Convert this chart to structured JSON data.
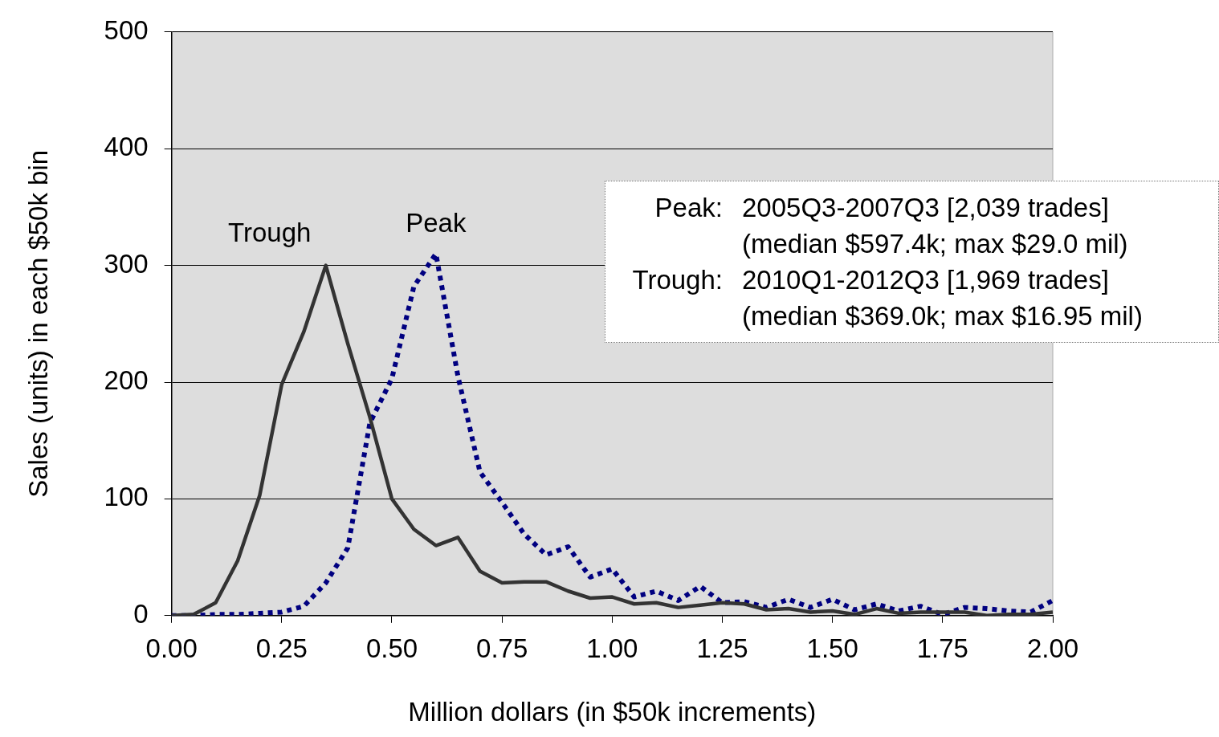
{
  "chart_data": {
    "type": "line",
    "xlabel": "Million dollars (in $50k increments)",
    "ylabel": "Sales (units) in each $50k bin",
    "x": [
      0,
      0.05,
      0.1,
      0.15,
      0.2,
      0.25,
      0.3,
      0.35,
      0.4,
      0.45,
      0.5,
      0.55,
      0.6,
      0.65,
      0.7,
      0.75,
      0.8,
      0.85,
      0.9,
      0.95,
      1,
      1.05,
      1.1,
      1.15,
      1.2,
      1.25,
      1.3,
      1.35,
      1.4,
      1.45,
      1.5,
      1.55,
      1.6,
      1.65,
      1.7,
      1.75,
      1.8,
      1.85,
      1.9,
      1.95,
      2
    ],
    "series": [
      {
        "name": "Trough",
        "color": "#333333",
        "line_style": "solid",
        "values": [
          0,
          1,
          11,
          47,
          103,
          198,
          243,
          300,
          233,
          170,
          100,
          74,
          60,
          67,
          38,
          28,
          29,
          29,
          21,
          15,
          16,
          10,
          11,
          7,
          9,
          11,
          10,
          5,
          6,
          3,
          4,
          1,
          6,
          2,
          3,
          3,
          3,
          0,
          1,
          1,
          3
        ]
      },
      {
        "name": "Peak",
        "color": "#000080",
        "line_style": "dotted",
        "values": [
          0,
          0,
          1,
          1,
          2,
          3,
          8,
          28,
          58,
          165,
          203,
          282,
          310,
          205,
          123,
          97,
          70,
          52,
          59,
          33,
          40,
          16,
          21,
          13,
          25,
          11,
          12,
          7,
          14,
          7,
          14,
          5,
          10,
          4,
          8,
          1,
          7,
          6,
          4,
          3,
          13
        ]
      }
    ],
    "xlim": [
      0,
      2
    ],
    "xticks": [
      {
        "value": 0,
        "label": "0.00"
      },
      {
        "value": 0.25,
        "label": "0.25"
      },
      {
        "value": 0.5,
        "label": "0.50"
      },
      {
        "value": 0.75,
        "label": "0.75"
      },
      {
        "value": 1,
        "label": "1.00"
      },
      {
        "value": 1.25,
        "label": "1.25"
      },
      {
        "value": 1.5,
        "label": "1.50"
      },
      {
        "value": 1.75,
        "label": "1.75"
      },
      {
        "value": 2,
        "label": "2.00"
      }
    ],
    "ylim": [
      0,
      500
    ],
    "yticks": [
      0,
      100,
      200,
      300,
      400,
      500
    ],
    "grid": "y",
    "legend": false,
    "marker": "none",
    "annotations": [
      "Peak:",
      "2005Q3-2007Q3 [2,039 trades]",
      "(median $597.4k; max $29.0 mil)",
      "Trough:",
      "2010Q1-2012Q3 [1,969 trades]",
      "(median $369.0k; max $16.95 mil)"
    ]
  }
}
